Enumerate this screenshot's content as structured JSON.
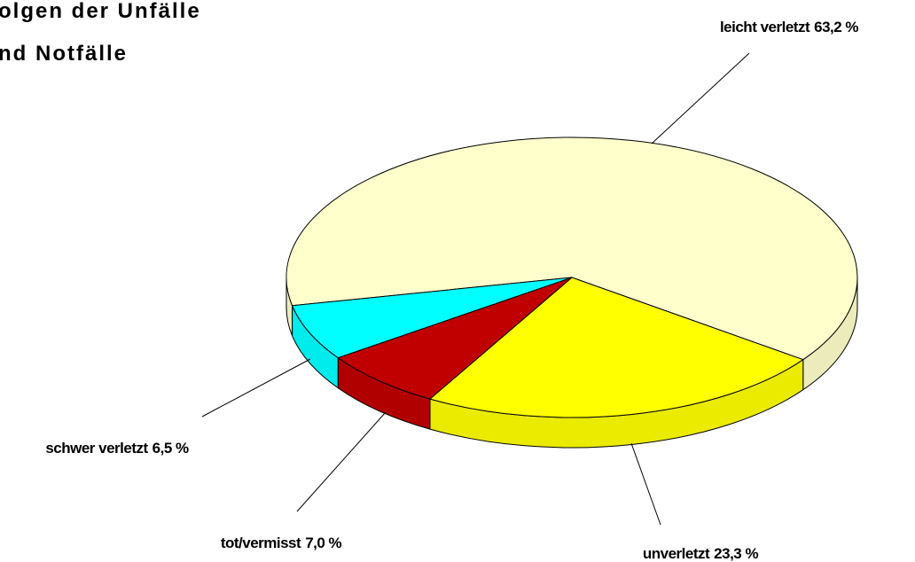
{
  "chart_data": {
    "type": "pie3d",
    "title_lines": [
      "olgen der Unfälle",
      "nd Notfälle"
    ],
    "categories": [
      "leicht verletzt",
      "unverletzt",
      "tot/vermisst",
      "schwer verletzt"
    ],
    "values": [
      63.2,
      23.3,
      7.0,
      6.5
    ],
    "value_labels": [
      "63,2 %",
      "23,3 %",
      "7,0 %",
      "6,5 %"
    ],
    "colors": [
      "#ffffcc",
      "#ffff00",
      "#c00000",
      "#00ffff"
    ]
  }
}
